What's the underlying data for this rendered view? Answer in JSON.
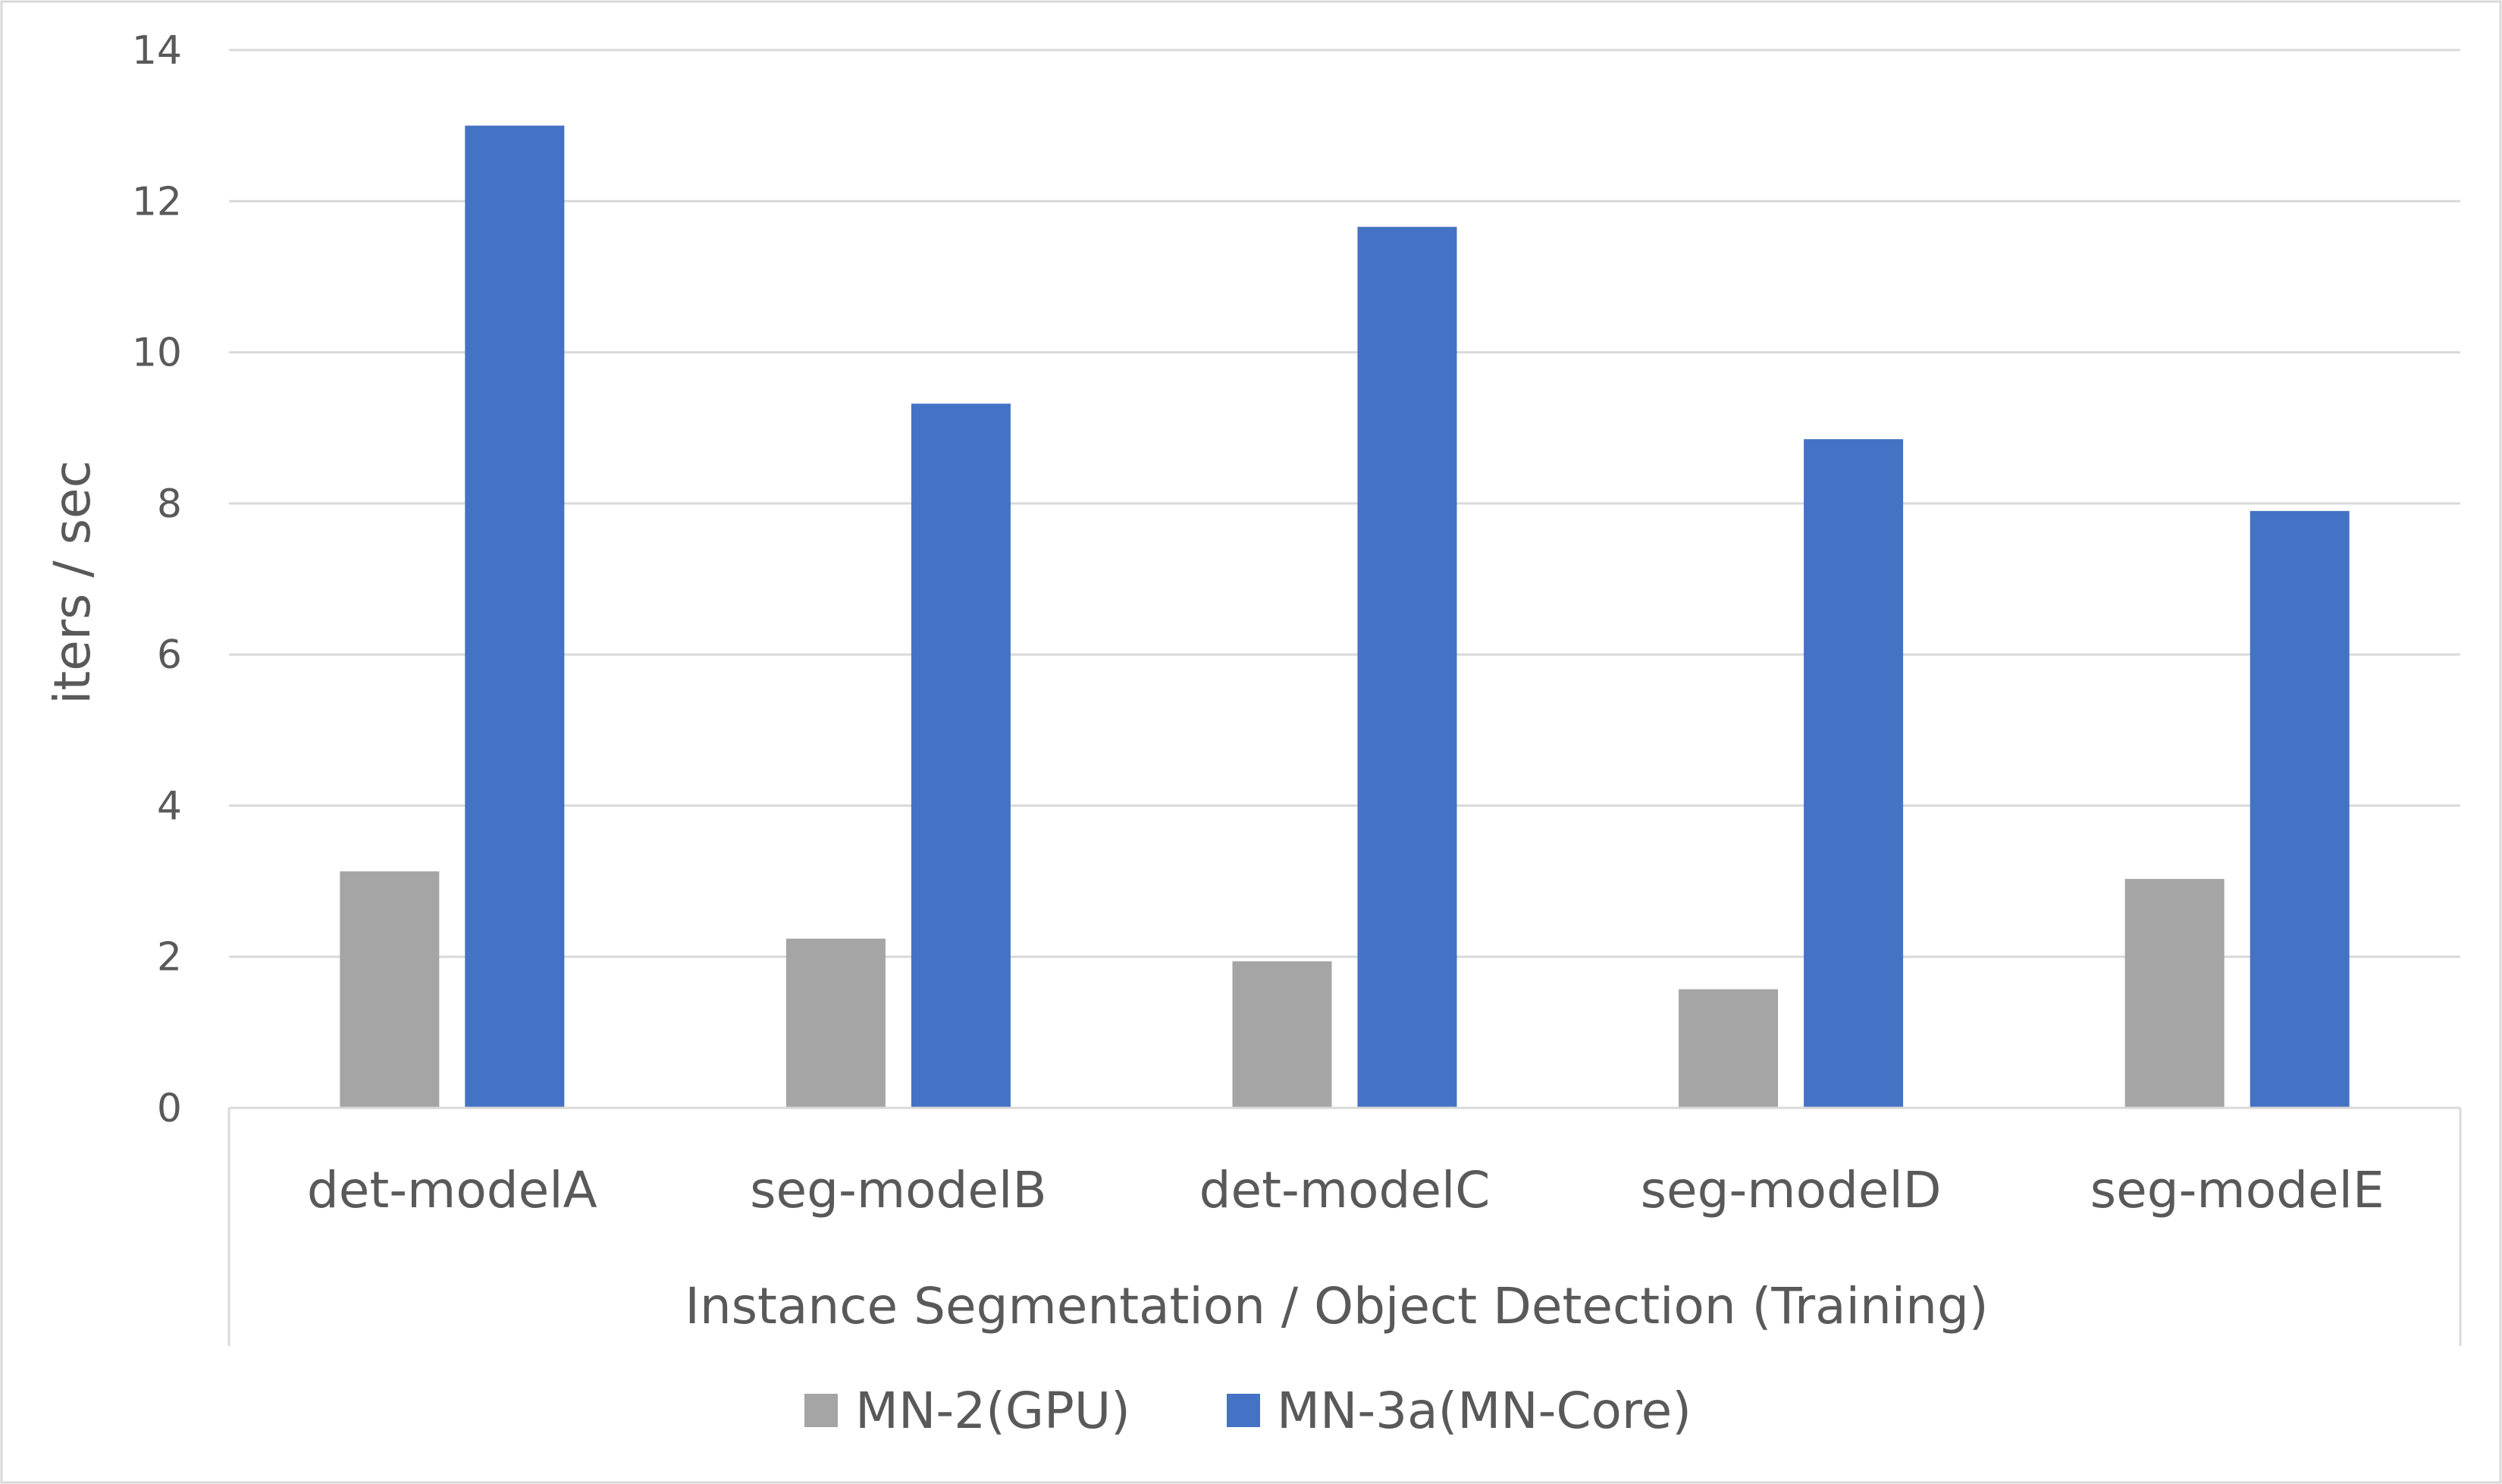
{
  "chart_data": {
    "type": "bar",
    "categories": [
      "det-modelA",
      "seg-modelB",
      "det-modelC",
      "seg-modelD",
      "seg-modelE"
    ],
    "series": [
      {
        "name": "MN-2(GPU)",
        "color": "#a5a5a5",
        "values": [
          3.13,
          2.24,
          1.94,
          1.57,
          3.03
        ]
      },
      {
        "name": "MN-3a(MN-Core)",
        "color": "#4472c4",
        "values": [
          13.0,
          9.32,
          11.66,
          8.85,
          7.9
        ]
      }
    ],
    "xlabel": "Instance Segmentation / Object Detection (Training)",
    "ylabel": "iters / sec",
    "ylim": [
      0,
      14
    ],
    "yticks": [
      "0",
      "2",
      "4",
      "6",
      "8",
      "10",
      "12",
      "14"
    ],
    "grid": true,
    "legend_position": "bottom-center"
  }
}
